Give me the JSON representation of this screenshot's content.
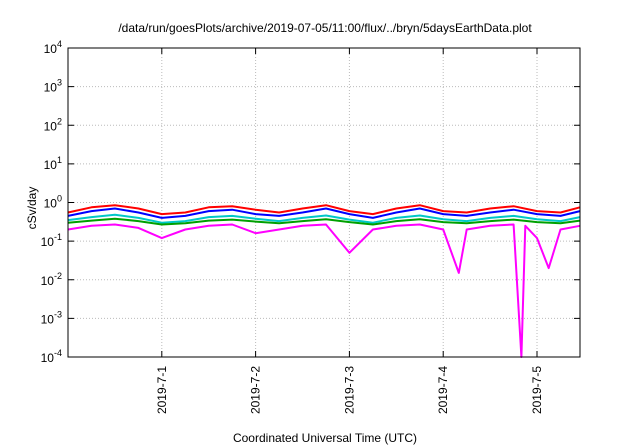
{
  "chart_data": {
    "type": "line",
    "title": "/data/run/goesPlots/archive/2019-07-05/11:00/flux/../bryn/5daysEarthData.plot",
    "xlabel": "Coordinated Universal Time (UTC)",
    "ylabel": "cSv/day",
    "yscale": "log",
    "ylim": [
      0.0001,
      10000
    ],
    "xlim": [
      "2019-06-30T00:00",
      "2019-07-05T11:00"
    ],
    "grid": true,
    "y_ticks": [
      {
        "base": "10",
        "exp": "-4",
        "value": 0.0001
      },
      {
        "base": "10",
        "exp": "-3",
        "value": 0.001
      },
      {
        "base": "10",
        "exp": "-2",
        "value": 0.01
      },
      {
        "base": "10",
        "exp": "-1",
        "value": 0.1
      },
      {
        "base": "10",
        "exp": "0",
        "value": 1
      },
      {
        "base": "10",
        "exp": "1",
        "value": 10
      },
      {
        "base": "10",
        "exp": "2",
        "value": 100
      },
      {
        "base": "10",
        "exp": "3",
        "value": 1000
      },
      {
        "base": "10",
        "exp": "4",
        "value": 10000
      }
    ],
    "x_ticks": [
      {
        "label": "2019-7-1",
        "value": "2019-07-01T00:00"
      },
      {
        "label": "2019-7-2",
        "value": "2019-07-02T00:00"
      },
      {
        "label": "2019-7-3",
        "value": "2019-07-03T00:00"
      },
      {
        "label": "2019-7-4",
        "value": "2019-07-04T00:00"
      },
      {
        "label": "2019-7-5",
        "value": "2019-07-05T00:00"
      }
    ],
    "series": [
      {
        "color": "#ff0000",
        "x": [
          "2019-06-30T00:00",
          "2019-06-30T06:00",
          "2019-06-30T12:00",
          "2019-06-30T18:00",
          "2019-07-01T00:00",
          "2019-07-01T06:00",
          "2019-07-01T12:00",
          "2019-07-01T18:00",
          "2019-07-02T00:00",
          "2019-07-02T06:00",
          "2019-07-02T12:00",
          "2019-07-02T18:00",
          "2019-07-03T00:00",
          "2019-07-03T06:00",
          "2019-07-03T12:00",
          "2019-07-03T18:00",
          "2019-07-04T00:00",
          "2019-07-04T06:00",
          "2019-07-04T12:00",
          "2019-07-04T18:00",
          "2019-07-05T00:00",
          "2019-07-05T06:00",
          "2019-07-05T11:00"
        ],
        "values": [
          0.55,
          0.75,
          0.85,
          0.7,
          0.5,
          0.55,
          0.75,
          0.8,
          0.65,
          0.55,
          0.7,
          0.85,
          0.6,
          0.5,
          0.7,
          0.85,
          0.6,
          0.55,
          0.7,
          0.8,
          0.6,
          0.55,
          0.75
        ]
      },
      {
        "color": "#0000ff",
        "x": [
          "2019-06-30T00:00",
          "2019-06-30T06:00",
          "2019-06-30T12:00",
          "2019-06-30T18:00",
          "2019-07-01T00:00",
          "2019-07-01T06:00",
          "2019-07-01T12:00",
          "2019-07-01T18:00",
          "2019-07-02T00:00",
          "2019-07-02T06:00",
          "2019-07-02T12:00",
          "2019-07-02T18:00",
          "2019-07-03T00:00",
          "2019-07-03T06:00",
          "2019-07-03T12:00",
          "2019-07-03T18:00",
          "2019-07-04T00:00",
          "2019-07-04T06:00",
          "2019-07-04T12:00",
          "2019-07-04T18:00",
          "2019-07-05T00:00",
          "2019-07-05T06:00",
          "2019-07-05T11:00"
        ],
        "values": [
          0.45,
          0.6,
          0.7,
          0.55,
          0.4,
          0.45,
          0.6,
          0.65,
          0.5,
          0.45,
          0.55,
          0.7,
          0.5,
          0.4,
          0.55,
          0.7,
          0.5,
          0.45,
          0.55,
          0.65,
          0.5,
          0.45,
          0.6
        ]
      },
      {
        "color": "#00c8c8",
        "x": [
          "2019-06-30T00:00",
          "2019-06-30T06:00",
          "2019-06-30T12:00",
          "2019-06-30T18:00",
          "2019-07-01T00:00",
          "2019-07-01T06:00",
          "2019-07-01T12:00",
          "2019-07-01T18:00",
          "2019-07-02T00:00",
          "2019-07-02T06:00",
          "2019-07-02T12:00",
          "2019-07-02T18:00",
          "2019-07-03T00:00",
          "2019-07-03T06:00",
          "2019-07-03T12:00",
          "2019-07-03T18:00",
          "2019-07-04T00:00",
          "2019-07-04T06:00",
          "2019-07-04T12:00",
          "2019-07-04T18:00",
          "2019-07-05T00:00",
          "2019-07-05T06:00",
          "2019-07-05T11:00"
        ],
        "values": [
          0.35,
          0.42,
          0.48,
          0.4,
          0.3,
          0.33,
          0.42,
          0.45,
          0.38,
          0.33,
          0.4,
          0.46,
          0.36,
          0.3,
          0.4,
          0.46,
          0.37,
          0.33,
          0.4,
          0.45,
          0.37,
          0.33,
          0.42
        ]
      },
      {
        "color": "#00a000",
        "x": [
          "2019-06-30T00:00",
          "2019-06-30T06:00",
          "2019-06-30T12:00",
          "2019-06-30T18:00",
          "2019-07-01T00:00",
          "2019-07-01T06:00",
          "2019-07-01T12:00",
          "2019-07-01T18:00",
          "2019-07-02T00:00",
          "2019-07-02T06:00",
          "2019-07-02T12:00",
          "2019-07-02T18:00",
          "2019-07-03T00:00",
          "2019-07-03T06:00",
          "2019-07-03T12:00",
          "2019-07-03T18:00",
          "2019-07-04T00:00",
          "2019-07-04T06:00",
          "2019-07-04T12:00",
          "2019-07-04T18:00",
          "2019-07-05T00:00",
          "2019-07-05T06:00",
          "2019-07-05T11:00"
        ],
        "values": [
          0.3,
          0.34,
          0.38,
          0.33,
          0.27,
          0.29,
          0.34,
          0.36,
          0.32,
          0.29,
          0.33,
          0.37,
          0.31,
          0.27,
          0.33,
          0.37,
          0.31,
          0.29,
          0.33,
          0.36,
          0.31,
          0.29,
          0.34
        ]
      },
      {
        "color": "#ff00ff",
        "x": [
          "2019-06-30T00:00",
          "2019-06-30T06:00",
          "2019-06-30T12:00",
          "2019-06-30T18:00",
          "2019-07-01T00:00",
          "2019-07-01T06:00",
          "2019-07-01T12:00",
          "2019-07-01T18:00",
          "2019-07-02T00:00",
          "2019-07-02T06:00",
          "2019-07-02T12:00",
          "2019-07-02T18:00",
          "2019-07-03T00:00",
          "2019-07-03T06:00",
          "2019-07-03T12:00",
          "2019-07-03T18:00",
          "2019-07-04T00:00",
          "2019-07-04T04:00",
          "2019-07-04T06:00",
          "2019-07-04T12:00",
          "2019-07-04T18:00",
          "2019-07-04T20:00",
          "2019-07-04T21:00",
          "2019-07-05T00:00",
          "2019-07-05T03:00",
          "2019-07-05T06:00",
          "2019-07-05T11:00"
        ],
        "values": [
          0.2,
          0.25,
          0.27,
          0.22,
          0.12,
          0.2,
          0.25,
          0.27,
          0.16,
          0.2,
          0.25,
          0.27,
          0.05,
          0.2,
          0.25,
          0.27,
          0.2,
          0.015,
          0.2,
          0.25,
          0.27,
          0.0001,
          0.25,
          0.12,
          0.02,
          0.2,
          0.25
        ]
      }
    ]
  }
}
